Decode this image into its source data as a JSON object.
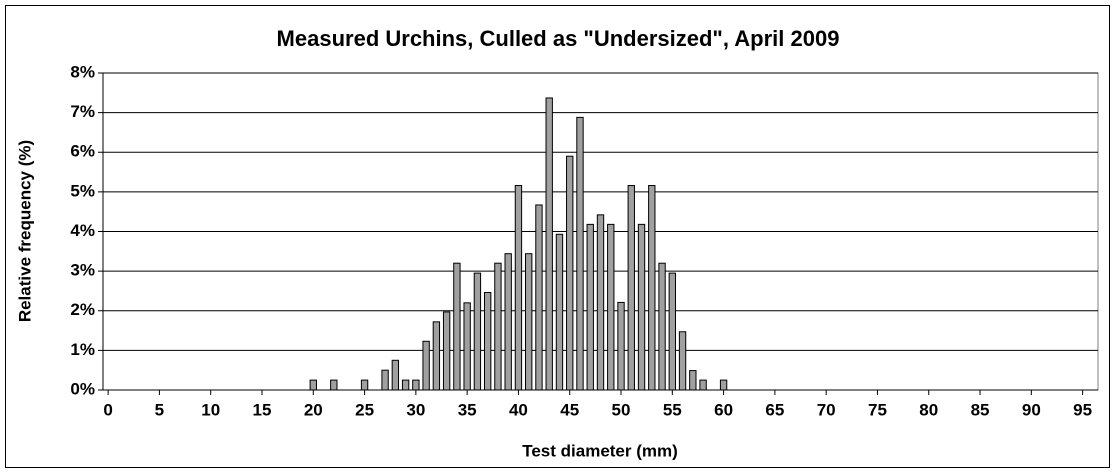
{
  "chart_data": {
    "type": "bar",
    "title": "Measured Urchins, Culled as \"Undersized\", April 2009",
    "x_label": "Test diameter (mm)",
    "y_label": "Relative frequency (%)",
    "x": [
      20,
      21,
      22,
      23,
      24,
      25,
      26,
      27,
      28,
      29,
      30,
      31,
      32,
      33,
      34,
      35,
      36,
      37,
      38,
      39,
      40,
      41,
      42,
      43,
      44,
      45,
      46,
      47,
      48,
      49,
      50,
      51,
      52,
      53,
      54,
      55,
      56,
      57,
      58,
      59,
      60
    ],
    "values": [
      0.25,
      0,
      0.25,
      0,
      0,
      0.25,
      0,
      0.5,
      0.75,
      0.25,
      0.25,
      1.23,
      1.72,
      1.97,
      3.2,
      2.2,
      2.95,
      2.46,
      3.2,
      3.44,
      5.16,
      3.44,
      4.67,
      7.37,
      3.93,
      5.9,
      6.88,
      4.18,
      4.42,
      4.18,
      2.21,
      5.16,
      4.18,
      5.16,
      3.2,
      2.95,
      1.47,
      0.49,
      0.25,
      0,
      0.25
    ],
    "color": "#a0a0a0",
    "xlim": [
      -0.5,
      96.5
    ],
    "xticks": [
      0,
      5,
      10,
      15,
      20,
      25,
      30,
      35,
      40,
      45,
      50,
      55,
      60,
      65,
      70,
      75,
      80,
      85,
      90,
      95
    ],
    "ylim": [
      0,
      8
    ],
    "yticks": [
      {
        "value": 0,
        "label": "0%"
      },
      {
        "value": 1,
        "label": "1%"
      },
      {
        "value": 2,
        "label": "2%"
      },
      {
        "value": 3,
        "label": "3%"
      },
      {
        "value": 4,
        "label": "4%"
      },
      {
        "value": 5,
        "label": "5%"
      },
      {
        "value": 6,
        "label": "6%"
      },
      {
        "value": 7,
        "label": "7%"
      },
      {
        "value": 8,
        "label": "8%"
      }
    ],
    "grid": true
  }
}
